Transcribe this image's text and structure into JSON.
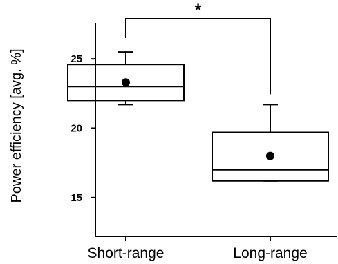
{
  "chart_data": {
    "type": "box",
    "title": "",
    "xlabel": "",
    "ylabel": "Power efficiency [avg. %]",
    "categories": [
      "Short-range",
      "Long-range"
    ],
    "ylim": [
      12.2,
      27.6
    ],
    "yticks": [
      15,
      20,
      25
    ],
    "grid": false,
    "boxes": [
      {
        "category": "Short-range",
        "whisker_low": 21.7,
        "q1": 22.0,
        "median": 23.0,
        "q3": 24.6,
        "whisker_high": 25.5,
        "mean": 23.3
      },
      {
        "category": "Long-range",
        "whisker_low": 16.2,
        "q1": 16.2,
        "median": 17.0,
        "q3": 19.7,
        "whisker_high": 21.7,
        "mean": 18.0
      }
    ],
    "significance": {
      "between": [
        "Short-range",
        "Long-range"
      ],
      "label": "*"
    },
    "colors": {
      "stroke": "#000000",
      "background": "#ffffff"
    }
  }
}
